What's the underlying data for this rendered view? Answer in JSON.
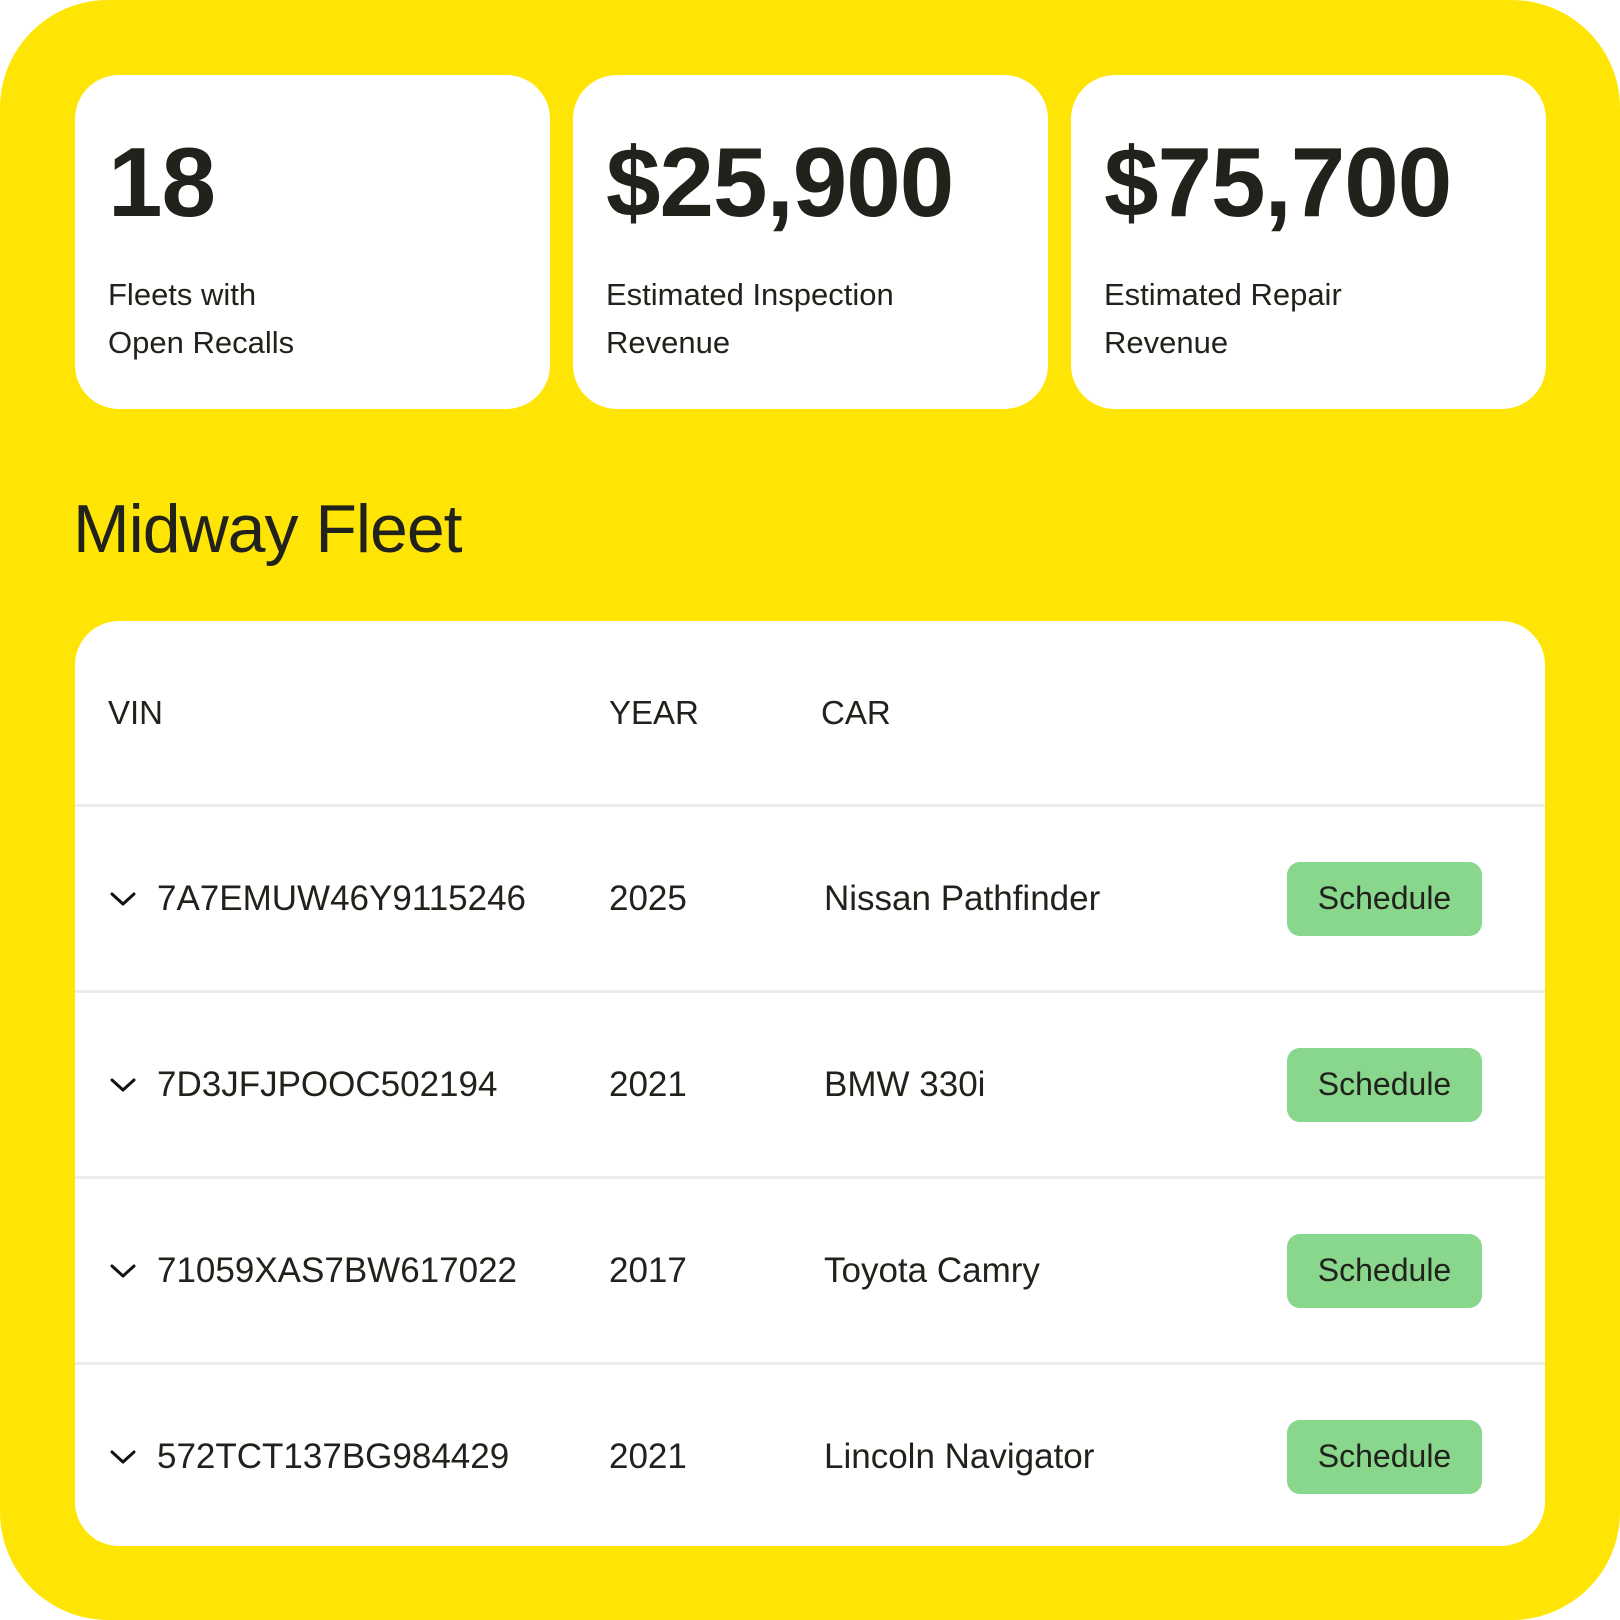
{
  "stats": [
    {
      "value": "18",
      "label": "Fleets with Open Recalls"
    },
    {
      "value": "$25,900",
      "label": "Estimated Inspection Revenue"
    },
    {
      "value": "$75,700",
      "label": "Estimated Repair Revenue"
    }
  ],
  "fleet": {
    "title": "Midway Fleet",
    "columns": {
      "vin": "VIN",
      "year": "YEAR",
      "car": "CAR"
    },
    "rows": [
      {
        "vin": "7A7EMUW46Y9115246",
        "year": "2025",
        "car": "Nissan Pathfinder",
        "action": "Schedule"
      },
      {
        "vin": "7D3JFJPOOC502194",
        "year": "2021",
        "car": "BMW 330i",
        "action": "Schedule"
      },
      {
        "vin": "71059XAS7BW617022",
        "year": "2017",
        "car": "Toyota Camry",
        "action": "Schedule"
      },
      {
        "vin": "572TCT137BG984429",
        "year": "2021",
        "car": "Lincoln Navigator",
        "action": "Schedule"
      }
    ]
  },
  "colors": {
    "background": "#ffe505",
    "card": "#ffffff",
    "button": "#88d78c",
    "text": "#22221c"
  },
  "icons": {
    "row_toggle": "chevron-down-icon"
  }
}
